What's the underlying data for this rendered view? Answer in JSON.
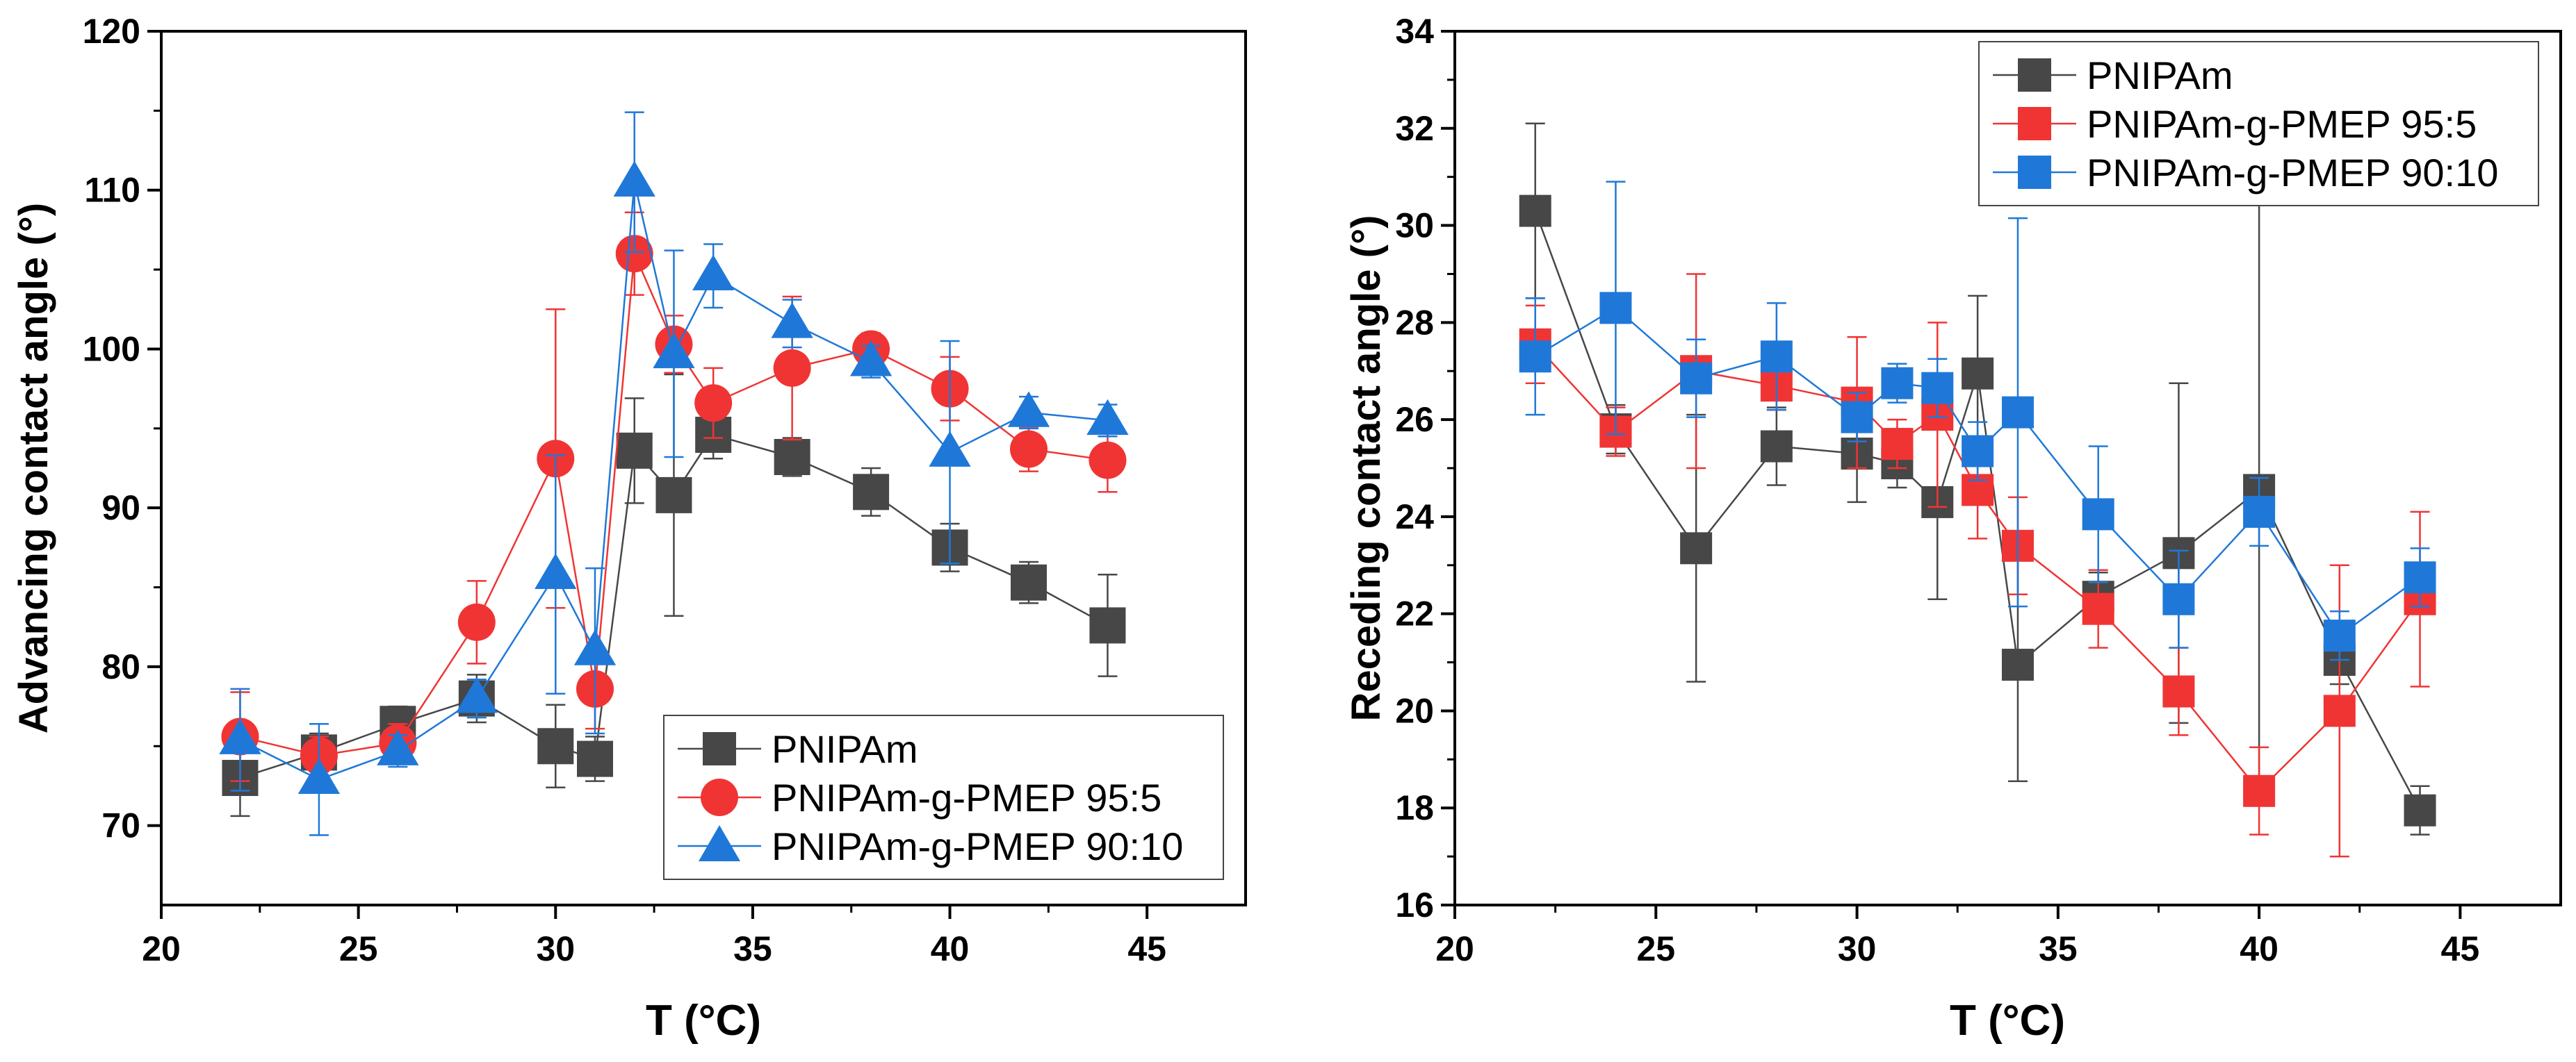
{
  "chart_data": [
    {
      "type": "scatter",
      "xlabel": "T (°C)",
      "ylabel": "Advancing contact angle (°)",
      "xlim": [
        20,
        47.5
      ],
      "ylim": [
        65,
        120
      ],
      "xticks": [
        20,
        25,
        30,
        35,
        40,
        45
      ],
      "yticks": [
        70,
        80,
        90,
        100,
        110,
        120
      ],
      "legend_position": "bottom-right",
      "series": [
        {
          "name": "PNIPAm",
          "color": "#474747",
          "marker": "square",
          "x": [
            22,
            24,
            26,
            28,
            30,
            31,
            32,
            33,
            34,
            36,
            38,
            40,
            42,
            44
          ],
          "y": [
            73,
            74.6,
            76.4,
            78,
            75,
            74.2,
            93.6,
            90.8,
            94.6,
            93.2,
            91,
            87.5,
            85.3,
            82.6
          ],
          "err": [
            2.4,
            1.2,
            1.1,
            1.5,
            2.6,
            1.4,
            3.3,
            7.6,
            1.5,
            1.2,
            1.5,
            1.5,
            1.3,
            3.2
          ]
        },
        {
          "name": "PNIPAm-g-PMEP 95:5",
          "color": "#f03434",
          "marker": "circle",
          "x": [
            22,
            24,
            26,
            28,
            30,
            31,
            32,
            33,
            34,
            36,
            38,
            40,
            42,
            44
          ],
          "y": [
            75.6,
            74.4,
            75.2,
            82.8,
            93.1,
            78.6,
            106,
            100.3,
            96.6,
            98.8,
            100,
            97.5,
            93.7,
            93
          ],
          "err": [
            2.8,
            1.2,
            1.2,
            2.6,
            9.4,
            2.5,
            2.6,
            1.8,
            2.2,
            4.5,
            1.0,
            2.0,
            1.4,
            2.0
          ]
        },
        {
          "name": "PNIPAm-g-PMEP 90:10",
          "color": "#1f78d8",
          "marker": "triangle",
          "x": [
            22,
            24,
            26,
            28,
            30,
            31,
            32,
            33,
            34,
            36,
            38,
            40,
            42,
            44
          ],
          "y": [
            75.4,
            72.9,
            74.7,
            78,
            85.8,
            81,
            110.5,
            99.7,
            104.6,
            101.6,
            99.2,
            93.5,
            96,
            95.5
          ],
          "err": [
            3.2,
            3.5,
            1.0,
            1.2,
            7.5,
            5.2,
            4.4,
            6.5,
            2.0,
            1.5,
            1.0,
            7.0,
            1.0,
            1.0
          ]
        }
      ]
    },
    {
      "type": "scatter",
      "xlabel": "T (°C)",
      "ylabel": "Receding contact angle (°)",
      "xlim": [
        20,
        47.5
      ],
      "ylim": [
        16,
        34
      ],
      "xticks": [
        20,
        25,
        30,
        35,
        40,
        45
      ],
      "yticks": [
        16,
        18,
        20,
        22,
        24,
        26,
        28,
        30,
        32,
        34
      ],
      "legend_position": "top-right",
      "series": [
        {
          "name": "PNIPAm",
          "color": "#474747",
          "marker": "square",
          "x": [
            22,
            24,
            26,
            28,
            30,
            31,
            32,
            33,
            34,
            36,
            38,
            40,
            42,
            44
          ],
          "y": [
            30.3,
            25.8,
            23.35,
            25.45,
            25.3,
            25.1,
            24.3,
            26.95,
            20.95,
            22.35,
            23.25,
            24.55,
            21.05,
            17.95
          ],
          "err": [
            1.8,
            0.5,
            2.75,
            0.8,
            1.0,
            0.5,
            2.0,
            1.6,
            2.4,
            0.5,
            3.5,
            6.5,
            0.5,
            0.5
          ]
        },
        {
          "name": "PNIPAm-g-PMEP 95:5",
          "color": "#f03434",
          "marker": "square",
          "x": [
            22,
            24,
            26,
            28,
            30,
            31,
            32,
            33,
            34,
            36,
            38,
            40,
            42,
            44
          ],
          "y": [
            27.55,
            25.75,
            27,
            26.7,
            26.35,
            25.5,
            26.1,
            24.55,
            23.4,
            22.1,
            20.4,
            18.35,
            20,
            22.3
          ],
          "err": [
            0.8,
            0.5,
            2.0,
            0.5,
            1.35,
            0.5,
            1.9,
            1.0,
            1.0,
            0.8,
            0.9,
            0.9,
            3.0,
            1.8
          ]
        },
        {
          "name": "PNIPAm-g-PMEP 90:10",
          "color": "#1f78d8",
          "marker": "square",
          "x": [
            22,
            24,
            26,
            28,
            30,
            31,
            32,
            33,
            34,
            36,
            38,
            40,
            42,
            44
          ],
          "y": [
            27.3,
            28.3,
            26.85,
            27.3,
            26.05,
            26.75,
            26.65,
            25.35,
            26.15,
            24.05,
            22.3,
            24.1,
            21.55,
            22.75
          ],
          "err": [
            1.2,
            2.6,
            0.8,
            1.1,
            0.5,
            0.4,
            0.6,
            0.6,
            4.0,
            1.4,
            1.0,
            0.7,
            0.5,
            0.6
          ]
        }
      ]
    }
  ]
}
